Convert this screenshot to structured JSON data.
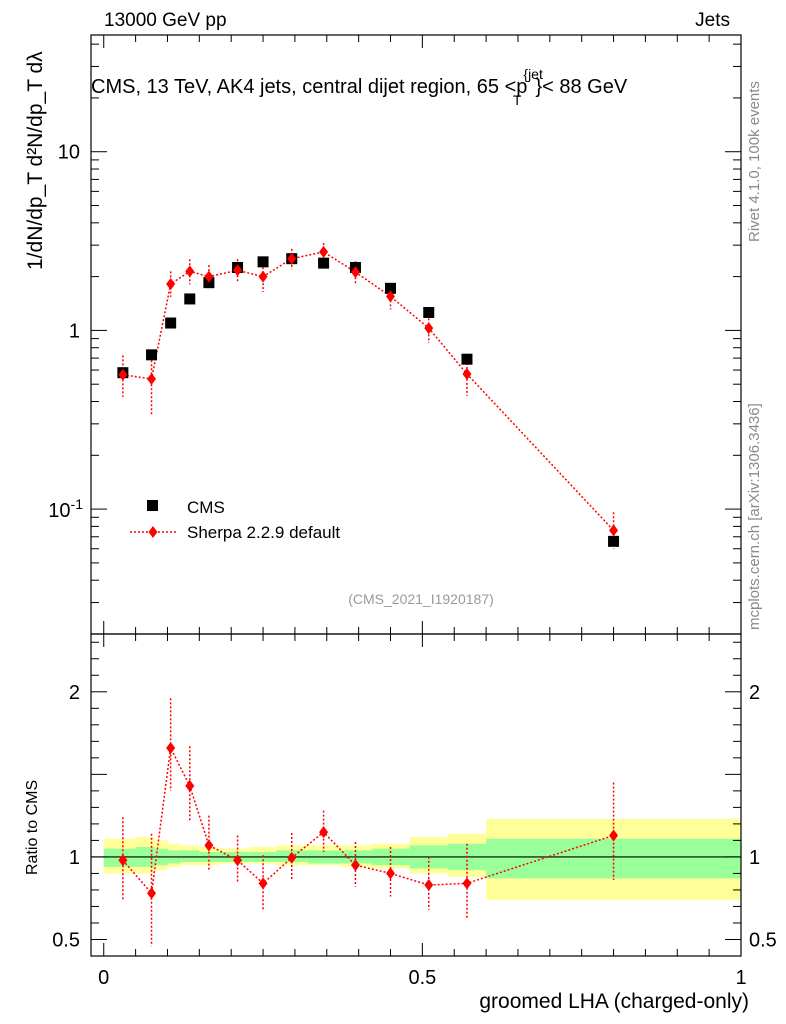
{
  "header": {
    "left": "13000 GeV pp",
    "right": "Jets"
  },
  "side_labels": {
    "version": "Rivet 4.1.0,  100k events",
    "site": "mcplots.cern.ch [arXiv:1306.3436]"
  },
  "colors": {
    "data": "#000000",
    "mc": "#ff0000",
    "band_inner": "#99ff99",
    "band_outer": "#ffff99",
    "analysis_label": "#9a9a9a"
  },
  "chart_data": [
    {
      "type": "scatter",
      "panel": "main",
      "title": "CMS, 13 TeV, AK4 jets, central dijet region, 65 <p_T^{jet}< 88 GeV",
      "analysis_label": "(CMS_2021_I1920187)",
      "ylabel": "1/dN/dp_T  d²N/dp_T dλ",
      "yscale": "log",
      "ylim": [
        0.02,
        45
      ],
      "xlim": [
        -0.02,
        1.0
      ],
      "yticks": [
        "10^{-1}",
        "1",
        "10"
      ],
      "legend_position": "bottom-left",
      "series": [
        {
          "name": "CMS",
          "marker": "square",
          "x": [
            0.03,
            0.075,
            0.105,
            0.135,
            0.165,
            0.21,
            0.25,
            0.295,
            0.345,
            0.395,
            0.45,
            0.51,
            0.57,
            0.8
          ],
          "y": [
            0.58,
            0.73,
            1.1,
            1.5,
            1.85,
            2.25,
            2.42,
            2.52,
            2.38,
            2.25,
            1.72,
            1.26,
            0.69,
            0.066
          ]
        },
        {
          "name": "Sherpa 2.2.9 default",
          "marker": "diamond",
          "line": "dotted",
          "x": [
            0.03,
            0.075,
            0.105,
            0.135,
            0.165,
            0.21,
            0.25,
            0.295,
            0.345,
            0.395,
            0.45,
            0.51,
            0.57,
            0.8
          ],
          "y": [
            0.565,
            0.535,
            1.82,
            2.14,
            2.0,
            2.17,
            2.0,
            2.52,
            2.75,
            2.12,
            1.55,
            1.03,
            0.57,
            0.076
          ],
          "yerr_low": [
            0.14,
            0.2,
            0.28,
            0.33,
            0.3,
            0.3,
            0.36,
            0.32,
            0.32,
            0.3,
            0.24,
            0.18,
            0.14,
            0.016
          ],
          "yerr_high": [
            0.16,
            0.22,
            0.32,
            0.36,
            0.32,
            0.33,
            0.38,
            0.34,
            0.33,
            0.32,
            0.26,
            0.2,
            0.16,
            0.02
          ]
        }
      ]
    },
    {
      "type": "scatter",
      "panel": "ratio",
      "ylabel": "Ratio to CMS",
      "xlabel": "groomed LHA (charged-only)",
      "ylim": [
        0.4,
        2.35
      ],
      "xlim": [
        -0.02,
        1.0
      ],
      "yticks": [
        "0.5",
        "1",
        "2"
      ],
      "xticks": [
        "0",
        "0.5",
        "1"
      ],
      "uncertainty_bands": {
        "edges": [
          0.0,
          0.05,
          0.08,
          0.1,
          0.12,
          0.15,
          0.18,
          0.23,
          0.27,
          0.32,
          0.37,
          0.42,
          0.48,
          0.54,
          0.6,
          1.0
        ],
        "inner_low": [
          0.94,
          0.94,
          0.95,
          0.96,
          0.97,
          0.97,
          0.97,
          0.97,
          0.97,
          0.96,
          0.96,
          0.95,
          0.93,
          0.92,
          0.87
        ],
        "inner_high": [
          1.05,
          1.06,
          1.05,
          1.04,
          1.04,
          1.03,
          1.03,
          1.03,
          1.04,
          1.04,
          1.04,
          1.05,
          1.07,
          1.08,
          1.11
        ],
        "outer_low": [
          0.9,
          0.9,
          0.92,
          0.94,
          0.95,
          0.95,
          0.96,
          0.96,
          0.95,
          0.95,
          0.94,
          0.93,
          0.9,
          0.88,
          0.74
        ],
        "outer_high": [
          1.11,
          1.12,
          1.1,
          1.08,
          1.07,
          1.06,
          1.05,
          1.06,
          1.07,
          1.07,
          1.07,
          1.08,
          1.12,
          1.14,
          1.23
        ]
      },
      "series": [
        {
          "name": "Sherpa 2.2.9 default",
          "marker": "diamond",
          "line": "dotted",
          "x": [
            0.03,
            0.075,
            0.105,
            0.135,
            0.165,
            0.21,
            0.25,
            0.295,
            0.345,
            0.395,
            0.45,
            0.51,
            0.57,
            0.8
          ],
          "y": [
            0.98,
            0.78,
            1.66,
            1.43,
            1.07,
            0.98,
            0.84,
            0.995,
            1.15,
            0.95,
            0.9,
            0.83,
            0.84,
            1.13
          ],
          "yerr_low": [
            0.24,
            0.32,
            0.26,
            0.22,
            0.16,
            0.14,
            0.16,
            0.14,
            0.12,
            0.13,
            0.14,
            0.15,
            0.22,
            0.27
          ],
          "yerr_high": [
            0.26,
            0.36,
            0.3,
            0.24,
            0.18,
            0.15,
            0.17,
            0.15,
            0.13,
            0.14,
            0.16,
            0.17,
            0.24,
            0.32
          ]
        }
      ]
    }
  ]
}
